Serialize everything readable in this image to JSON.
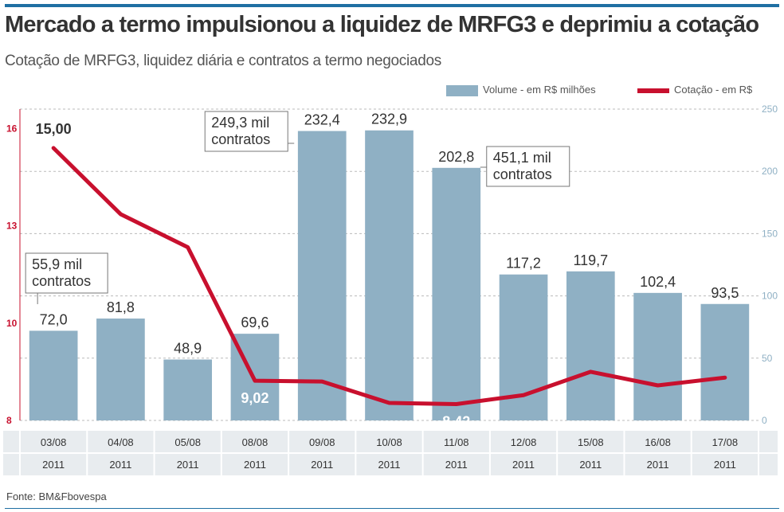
{
  "header": {
    "title": "Mercado a termo impulsionou a liquidez de MRFG3 e deprimiu a cotação",
    "subtitle": "Cotação de MRFG3, liquidez diária e contratos a termo negociados"
  },
  "source": "Fonte: BM&Fbovespa",
  "colors": {
    "bar": "#8fb0c4",
    "line": "#c8102e",
    "left_axis": "#c8102e",
    "right_axis": "#8fb0c4",
    "accent": "#1f6fa3"
  },
  "chart_data": {
    "type": "bar",
    "categories": [
      "03/08",
      "04/08",
      "05/08",
      "08/08",
      "09/08",
      "10/08",
      "11/08",
      "12/08",
      "15/08",
      "16/08",
      "17/08"
    ],
    "category_year": "2011",
    "series": [
      {
        "name": "Volume - em R$ milhões",
        "type": "bar",
        "axis": "right",
        "values": [
          72.0,
          81.8,
          48.9,
          69.6,
          232.4,
          232.9,
          202.8,
          117.2,
          119.7,
          102.4,
          93.5
        ],
        "labels": [
          "72,0",
          "81,8",
          "48,9",
          "69,6",
          "232,4",
          "232,9",
          "202,8",
          "117,2",
          "119,7",
          "102,4",
          "93,5"
        ]
      },
      {
        "name": "Cotação - em R$",
        "type": "line",
        "axis": "left",
        "values": [
          15.0,
          13.3,
          12.45,
          9.02,
          9.0,
          8.45,
          8.42,
          8.65,
          9.25,
          8.9,
          9.1
        ],
        "point_labels": [
          {
            "index": 0,
            "text": "15,00"
          },
          {
            "index": 3,
            "text": "9,02"
          },
          {
            "index": 6,
            "text": "8,42"
          }
        ]
      }
    ],
    "left_axis": {
      "ylim": [
        8,
        16
      ],
      "ticks": [
        "8",
        "10",
        "13",
        "16"
      ],
      "tick_values": [
        8,
        10.5,
        13,
        15.5
      ]
    },
    "right_axis": {
      "ylim": [
        0,
        250
      ],
      "ticks": [
        "0",
        "50",
        "100",
        "150",
        "200",
        "250"
      ],
      "tick_values": [
        0,
        50,
        100,
        150,
        200,
        250
      ]
    },
    "annotations": [
      {
        "lines": [
          "55,9 mil",
          "contratos"
        ],
        "index": 0
      },
      {
        "lines": [
          "249,3 mil",
          "contratos"
        ],
        "index": 4
      },
      {
        "lines": [
          "451,1 mil",
          "contratos"
        ],
        "index": 6
      }
    ],
    "grid": true,
    "legend_position": "top-right"
  }
}
